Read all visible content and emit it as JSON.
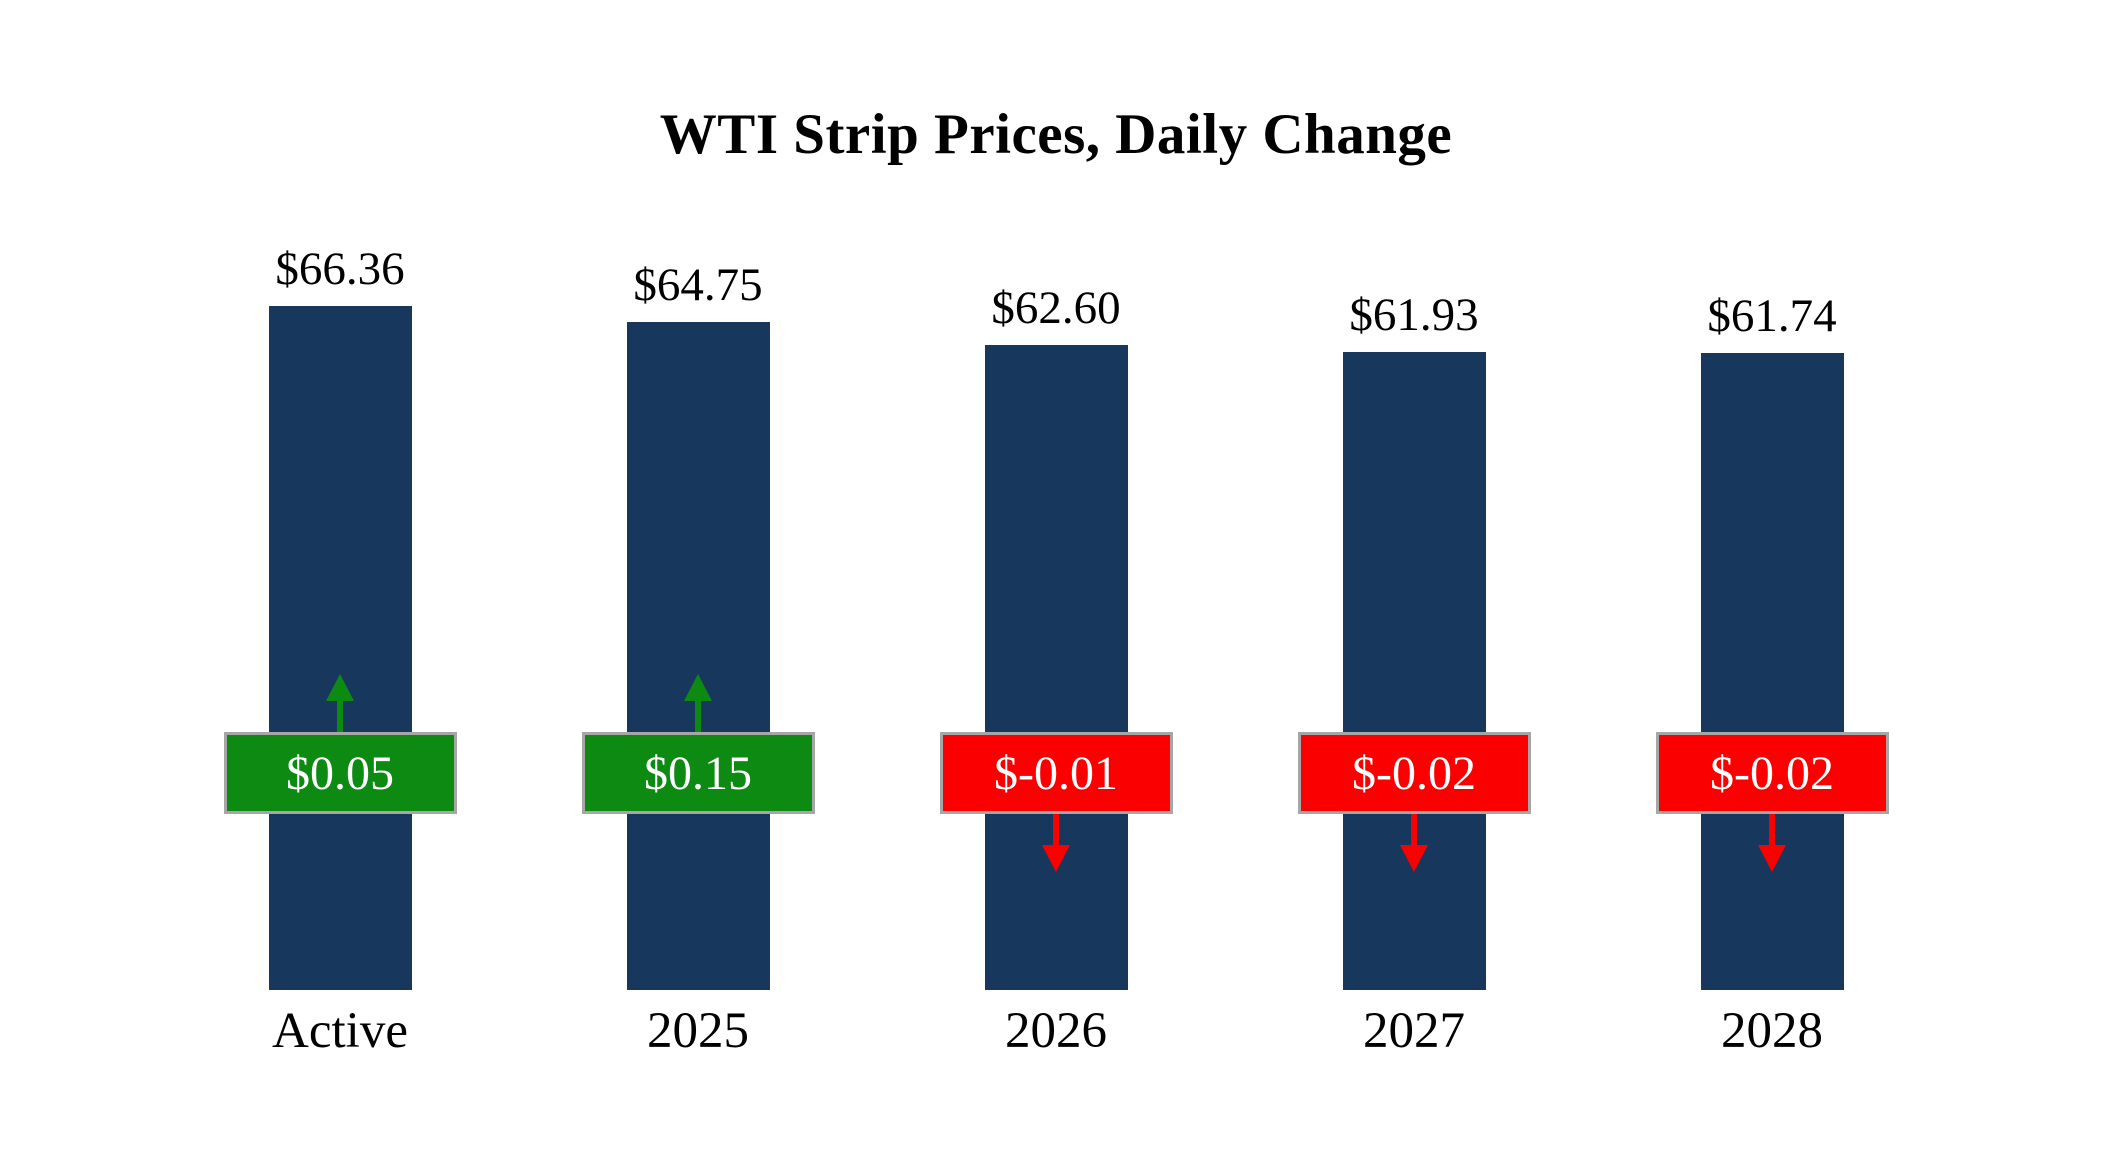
{
  "title": "WTI Strip Prices, Daily Change",
  "chart_data": {
    "type": "bar",
    "title": "WTI Strip Prices, Daily Change",
    "categories": [
      "Active",
      "2025",
      "2026",
      "2027",
      "2028"
    ],
    "values": [
      66.36,
      64.75,
      62.6,
      61.93,
      61.74
    ],
    "value_labels": [
      "$66.36",
      "$64.75",
      "$62.60",
      "$61.93",
      "$61.74"
    ],
    "changes": [
      0.05,
      0.15,
      -0.01,
      -0.02,
      -0.02
    ],
    "change_labels": [
      "$0.05",
      "$0.15",
      "$-0.01",
      "$-0.02",
      "$-0.02"
    ],
    "xlabel": "",
    "ylabel": "",
    "legend": "none",
    "grid": "off",
    "colors": {
      "bar": "#17375d",
      "up": "#0d8a12",
      "down": "#fb0000",
      "badge_border": "#a6a6a6",
      "badge_text": "#ffffff",
      "text": "#000000"
    }
  }
}
